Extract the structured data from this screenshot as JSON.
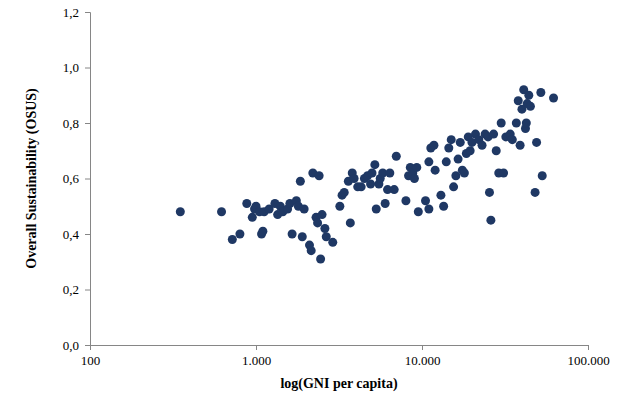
{
  "chart_data": {
    "type": "scatter",
    "x_label": "log(GNI per capita)",
    "y_label": "Overall Sustainability (OSUS)",
    "log": "x",
    "grid": false,
    "marker": "circle",
    "color": "#1f3864",
    "xlim": [
      100,
      100000
    ],
    "xticks": [
      100,
      {
        "value": 1000,
        "label": "1.000"
      },
      {
        "value": 10000,
        "label": "10.000"
      },
      {
        "value": 100000,
        "label": "100.000"
      }
    ],
    "ylim": [
      0,
      1.2
    ],
    "yticks": [
      {
        "value": 0,
        "label": "0,0"
      },
      {
        "value": 0.2,
        "label": "0,2"
      },
      {
        "value": 0.4,
        "label": "0,4"
      },
      {
        "value": 0.6,
        "label": "0,6"
      },
      {
        "value": 0.8,
        "label": "0,8"
      },
      {
        "value": 1.0,
        "label": "1,0"
      },
      {
        "value": 1.2,
        "label": "1,2"
      }
    ],
    "x": [
      350,
      620,
      720,
      800,
      880,
      950,
      980,
      1000,
      1050,
      1080,
      1100,
      1120,
      1200,
      1300,
      1350,
      1400,
      1450,
      1550,
      1600,
      1650,
      1750,
      1800,
      1850,
      1900,
      1950,
      2100,
      2150,
      2200,
      2300,
      2350,
      2400,
      2450,
      2500,
      2600,
      2650,
      2900,
      3200,
      3300,
      3400,
      3600,
      3700,
      3800,
      3900,
      4100,
      4300,
      4500,
      4700,
      4900,
      5000,
      5200,
      5300,
      5500,
      5600,
      5800,
      6000,
      6200,
      6400,
      6800,
      7000,
      8000,
      8300,
      8500,
      8800,
      9000,
      9300,
      9500,
      10500,
      11000,
      11300,
      11800,
      11000,
      12000,
      13000,
      13500,
      14000,
      14500,
      15000,
      15500,
      16000,
      16500,
      17000,
      17500,
      18000,
      18500,
      19000,
      19500,
      20000,
      21000,
      22000,
      23000,
      24000,
      25000,
      25500,
      26000,
      27000,
      28000,
      29000,
      30000,
      31000,
      32000,
      34000,
      35000,
      37000,
      38000,
      39000,
      40000,
      41000,
      42000,
      42500,
      43000,
      44000,
      45000,
      48000,
      49000,
      52000,
      53000,
      62000
    ],
    "values": [
      0.48,
      0.48,
      0.38,
      0.4,
      0.51,
      0.46,
      0.49,
      0.5,
      0.48,
      0.4,
      0.41,
      0.48,
      0.49,
      0.51,
      0.47,
      0.5,
      0.48,
      0.49,
      0.51,
      0.4,
      0.52,
      0.5,
      0.59,
      0.39,
      0.49,
      0.36,
      0.34,
      0.62,
      0.46,
      0.44,
      0.61,
      0.31,
      0.47,
      0.42,
      0.39,
      0.37,
      0.5,
      0.54,
      0.55,
      0.59,
      0.44,
      0.62,
      0.6,
      0.57,
      0.57,
      0.6,
      0.61,
      0.58,
      0.62,
      0.65,
      0.49,
      0.58,
      0.6,
      0.62,
      0.51,
      0.56,
      0.62,
      0.56,
      0.68,
      0.52,
      0.61,
      0.64,
      0.62,
      0.6,
      0.64,
      0.48,
      0.52,
      0.66,
      0.71,
      0.72,
      0.49,
      0.63,
      0.54,
      0.5,
      0.66,
      0.71,
      0.74,
      0.57,
      0.61,
      0.67,
      0.73,
      0.63,
      0.62,
      0.69,
      0.75,
      0.7,
      0.73,
      0.76,
      0.74,
      0.72,
      0.76,
      0.75,
      0.55,
      0.45,
      0.76,
      0.7,
      0.62,
      0.8,
      0.62,
      0.75,
      0.76,
      0.74,
      0.8,
      0.88,
      0.72,
      0.85,
      0.92,
      0.78,
      0.8,
      0.87,
      0.9,
      0.86,
      0.55,
      0.73,
      0.91,
      0.61,
      0.89
    ]
  }
}
